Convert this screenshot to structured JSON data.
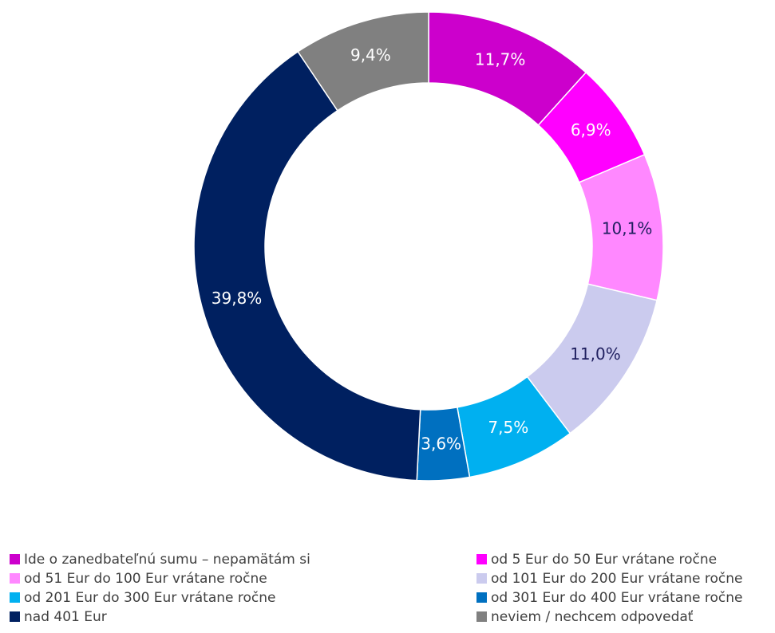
{
  "chart_data": {
    "type": "donut",
    "categories": [
      "Ide o zanedbateľnú sumu – nepamätám si",
      "od 5 Eur do 50 Eur vrátane ročne",
      "od 51 Eur do 100 Eur vrátane ročne",
      "od 101 Eur do 200 Eur vrátane ročne",
      "od 201 Eur do 300 Eur vrátane ročne",
      "od 301 Eur do 400 Eur vrátane ročne",
      "nad 401 Eur",
      "neviem / nechcem odpovedať"
    ],
    "values": [
      11.7,
      6.9,
      10.1,
      11.0,
      7.5,
      3.6,
      39.8,
      9.4
    ],
    "value_labels": [
      "11,7%",
      "6,9%",
      "10,1%",
      "11,0%",
      "7,5%",
      "3,6%",
      "39,8%",
      "9,4%"
    ],
    "colors": [
      "#cc00cc",
      "#ff00ff",
      "#ff88ff",
      "#cbcbee",
      "#00b0f0",
      "#0070c0",
      "#002060",
      "#808080"
    ],
    "label_colors": [
      "#ffffff",
      "#ffffff",
      "#1f1f5f",
      "#1f1f5f",
      "#ffffff",
      "#ffffff",
      "#ffffff",
      "#ffffff"
    ],
    "legend": "bottom"
  }
}
